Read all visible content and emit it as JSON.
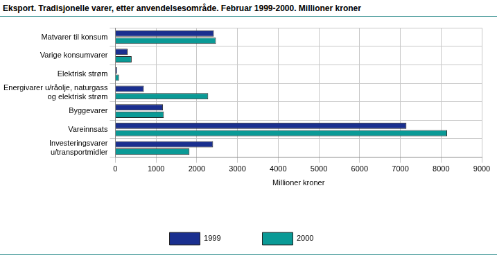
{
  "chart_data": {
    "type": "bar",
    "orientation": "horizontal",
    "title": "Eksport. Tradisjonelle varer, etter anvendelsesområde. Februar 1999-2000. Millioner kroner",
    "x_label": "Millioner kroner",
    "categories": [
      "Matvarer til konsum",
      "Varige konsumvarer",
      "Elektrisk strøm",
      [
        "Energivarer u/råolje, naturgass",
        "og elektrisk strøm"
      ],
      "Byggevarer",
      "Vareinnsats",
      [
        "Investeringsvarer",
        "u/transportmidler"
      ]
    ],
    "series": [
      {
        "name": "1999",
        "color": "#1a2f8f",
        "values": [
          2420,
          300,
          40,
          700,
          1170,
          7150,
          2400
        ]
      },
      {
        "name": "2000",
        "color": "#0a9a96",
        "values": [
          2470,
          400,
          90,
          2280,
          1190,
          8150,
          1820
        ]
      }
    ],
    "xlim": [
      0,
      9000
    ],
    "xticks": [
      0,
      1000,
      2000,
      3000,
      4000,
      5000,
      6000,
      7000,
      8000,
      9000
    ],
    "grid": true,
    "legend": "bottom"
  }
}
